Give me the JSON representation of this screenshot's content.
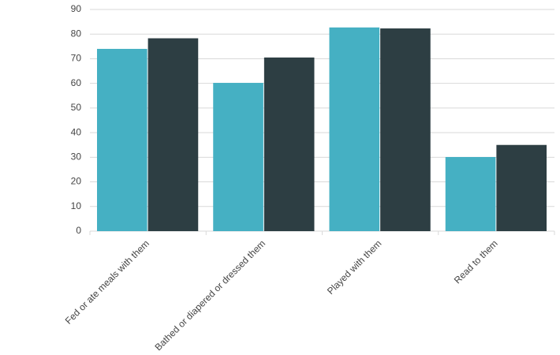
{
  "chart_data": {
    "type": "bar",
    "categories": [
      "Fed or ate meals with them",
      "Bathed or diapered or dressed them",
      "Played with them",
      "Read to them"
    ],
    "series": [
      {
        "color": "#45b0c3",
        "values": [
          74,
          60.2,
          82.7,
          30.1
        ]
      },
      {
        "color": "#2d3e43",
        "values": [
          78.3,
          70.5,
          82.3,
          35
        ]
      }
    ],
    "ylim": [
      0,
      90
    ],
    "yticks": [
      0,
      10,
      20,
      30,
      40,
      50,
      60,
      70,
      80,
      90
    ],
    "grid": true
  }
}
